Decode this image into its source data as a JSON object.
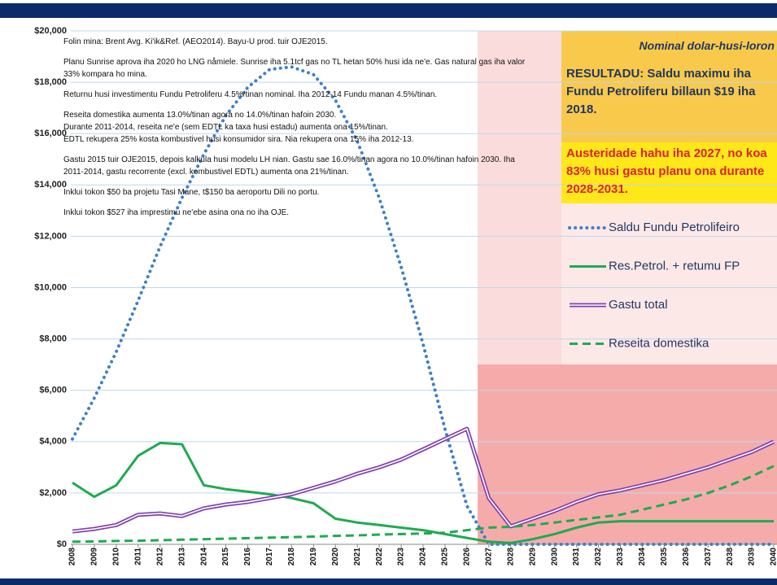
{
  "chart_data": {
    "type": "line",
    "categories": [
      "2008",
      "2009",
      "2010",
      "2011",
      "2012",
      "2013",
      "2014",
      "2015",
      "2016",
      "2017",
      "2018",
      "2019",
      "2020",
      "2021",
      "2022",
      "2023",
      "2024",
      "2025",
      "2026",
      "2027",
      "2028",
      "2029",
      "2030",
      "2031",
      "2032",
      "2033",
      "2034",
      "2035",
      "2036",
      "2037",
      "2038",
      "2039",
      "2040"
    ],
    "ylim": [
      0,
      20000
    ],
    "yticks": [
      {
        "value": 0,
        "label": "$0"
      },
      {
        "value": 2000,
        "label": "$2,000"
      },
      {
        "value": 4000,
        "label": "$4,000"
      },
      {
        "value": 6000,
        "label": "$6,000"
      },
      {
        "value": 8000,
        "label": "$8,000"
      },
      {
        "value": 10000,
        "label": "$10,000"
      },
      {
        "value": 12000,
        "label": "$12,000"
      },
      {
        "value": 14000,
        "label": "$14,000"
      },
      {
        "value": 16000,
        "label": "$16,000"
      },
      {
        "value": 18000,
        "label": "$18,000"
      },
      {
        "value": 20000,
        "label": "$20,000"
      }
    ],
    "grid": true,
    "series": [
      {
        "name": "Saldu Fundu Petrolifeiro",
        "color": "#3f7fc6",
        "style": "dotted",
        "values": [
          4100,
          5700,
          7500,
          9500,
          11600,
          13500,
          15200,
          16700,
          17800,
          18500,
          18600,
          18300,
          17300,
          15700,
          13500,
          10800,
          7800,
          4500,
          1500,
          0,
          0,
          0,
          0,
          0,
          0,
          0,
          0,
          0,
          0,
          0,
          0,
          0,
          0
        ]
      },
      {
        "name": "Res.Petrol. + retumu FP",
        "color": "#1faa50",
        "style": "solid",
        "values": [
          2400,
          1850,
          2300,
          3450,
          3950,
          3900,
          2300,
          2150,
          2050,
          1950,
          1800,
          1600,
          1000,
          850,
          750,
          650,
          550,
          400,
          250,
          100,
          50,
          200,
          400,
          650,
          850,
          900,
          900,
          900,
          900,
          900,
          900,
          900,
          900
        ]
      },
      {
        "name": "Gastu total",
        "color": "#8040b0",
        "style": "double",
        "values": [
          500,
          600,
          750,
          1150,
          1200,
          1100,
          1400,
          1550,
          1650,
          1800,
          1950,
          2200,
          2450,
          2750,
          3000,
          3300,
          3700,
          4100,
          4500,
          1800,
          700,
          1000,
          1300,
          1650,
          1950,
          2100,
          2300,
          2500,
          2750,
          3000,
          3300,
          3600,
          4000
        ]
      },
      {
        "name": "Reseita domestika",
        "color": "#1faa50",
        "style": "dashed",
        "values": [
          100,
          110,
          130,
          140,
          160,
          180,
          200,
          220,
          240,
          260,
          280,
          300,
          330,
          350,
          380,
          400,
          420,
          450,
          550,
          650,
          680,
          750,
          850,
          950,
          1050,
          1150,
          1350,
          1550,
          1750,
          2000,
          2300,
          2650,
          3050
        ]
      }
    ],
    "notes": [
      [
        "Folin mina: Brent Avg. Ki'ik&Ref. (AEO2014).   Bayu-U prod. tuir OJE2015."
      ],
      [
        "Planu Sunrise aprova iha 2020 ho LNG nåmiele. Sunrise iha 5.1tcf gas no TL hetan 50% husi ida ne'e. Gas natural gas iha valor 33% kompara ho mina."
      ],
      [
        "Returnu husi investimentu Fundu Petroliferu 4.5%/tinan nominal.   Iha 2012-14 Fundu manan 4.5%/tinan."
      ],
      [
        "Reseita domestika aumenta 13.0%/tinan agora no 14.0%/tinan hafoin 2030.",
        "Durante 2011-2014, reseita ne'e (sem EDTL ka taxa husi estadu) aumenta ona 15%/tinan.",
        "EDTL rekupera 25% kosta kombustivel husi konsumidor sira. Nia rekupera ona 15% iha 2012-13."
      ],
      [
        "Gastu 2015 tuir OJE2015, depois kalkula husi modelu LH nian. Gastu sae 16.0%/tinan agora no 10.0%/tinan hafoin 2030. Iha 2011-2014, gastu recorrente (excl. kombustivel EDTL) aumenta ona 21%/tinan."
      ],
      [
        "Inklui tokon $50 ba projetu Tasi Mane, t$150 ba aeroportu Dili no portu."
      ],
      [
        "Inklui tokon $527 iha imprestimu ne'ebe asina ona no iha OJE."
      ]
    ],
    "subtitle": "Nominal dolar-husi-loron",
    "result": "RESULTADU: Saldu maximu iha Fundu Petroliferu billaun $19 iha 2018.",
    "austerity": "Austeridade hahu iha 2027, no koa 83% husi gastu planu ona durante 2028-2031."
  }
}
